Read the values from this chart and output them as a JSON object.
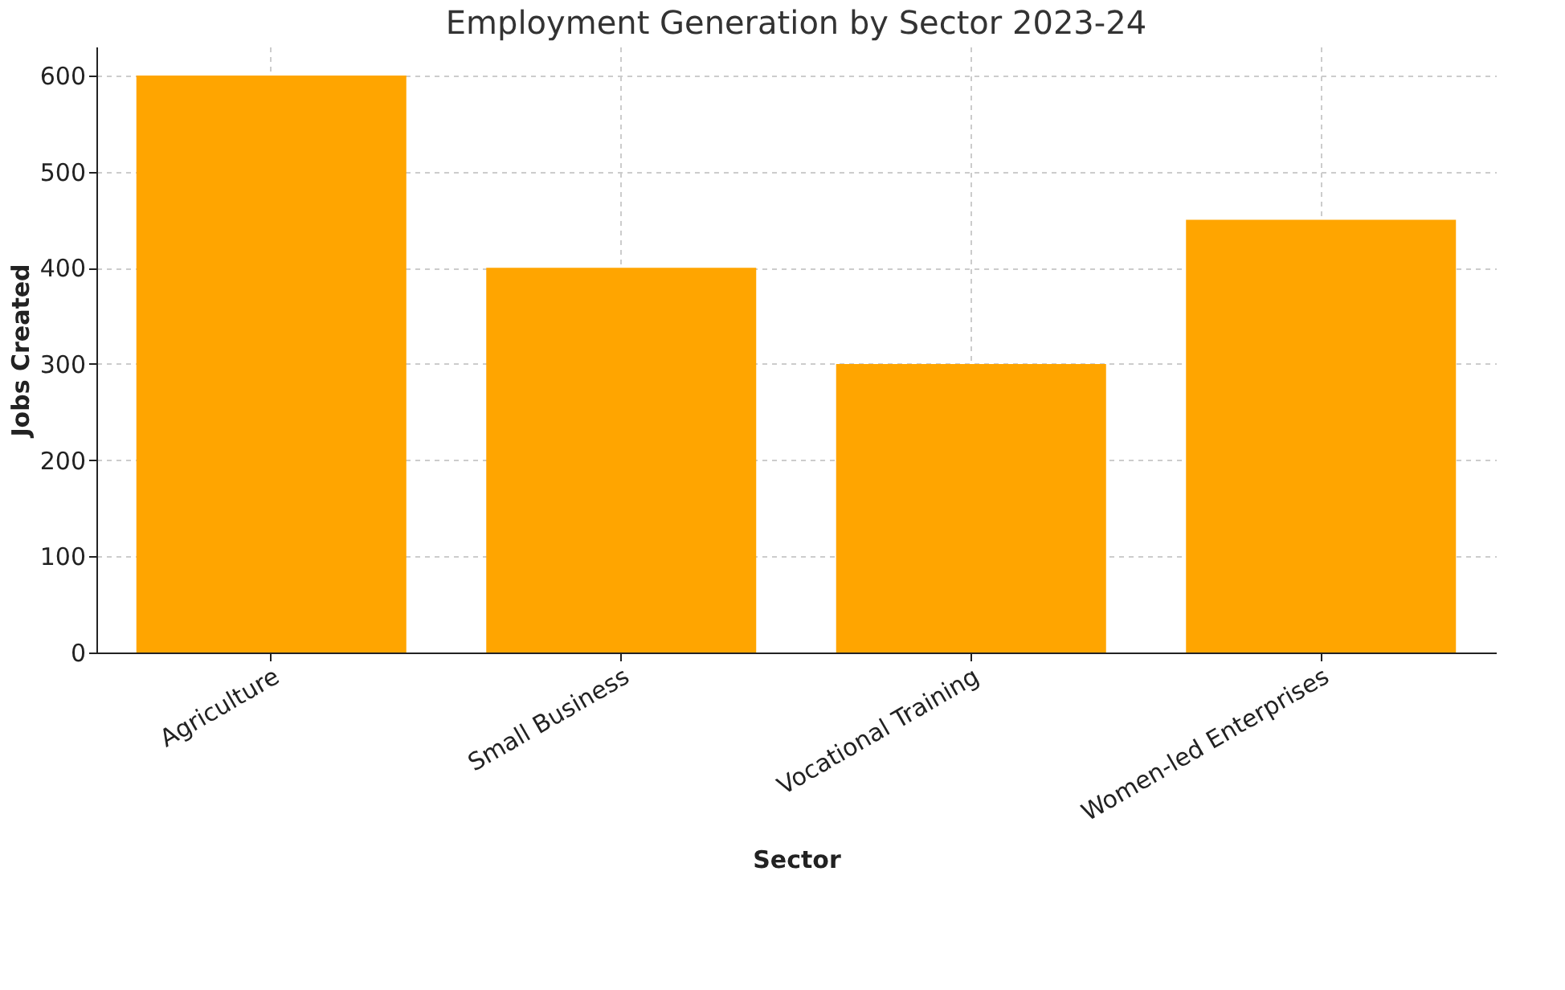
{
  "chart_data": {
    "type": "bar",
    "title": "Employment Generation by Sector 2023-24",
    "xlabel": "Sector",
    "ylabel": "Jobs Created",
    "categories": [
      "Agriculture",
      "Small Business",
      "Vocational Training",
      "Women-led Enterprises"
    ],
    "values": [
      600,
      400,
      300,
      450
    ],
    "color": "#ffa500",
    "ylim": [
      0,
      630
    ],
    "yticks": [
      0,
      100,
      200,
      300,
      400,
      500,
      600
    ],
    "grid": true
  }
}
